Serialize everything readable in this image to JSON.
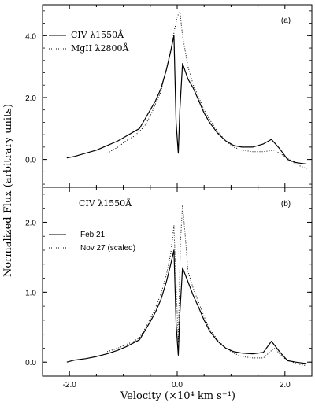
{
  "chart_data": [
    {
      "type": "line",
      "panel_label": "(a)",
      "xlim": [
        -2.5,
        2.5
      ],
      "ylim": [
        -0.9,
        5.0
      ],
      "yticks": [
        0.0,
        2.0,
        4.0
      ],
      "ytick_labels": [
        "0.0",
        "2.0",
        "4.0"
      ],
      "legend_placement": "top-left",
      "series": [
        {
          "name": "CIV λ1550Å",
          "style": "solid",
          "x": [
            -2.05,
            -1.9,
            -1.7,
            -1.5,
            -1.3,
            -1.1,
            -0.95,
            -0.8,
            -0.7,
            -0.6,
            -0.5,
            -0.4,
            -0.3,
            -0.2,
            -0.12,
            -0.06,
            -0.02,
            0.02,
            0.05,
            0.1,
            0.2,
            0.3,
            0.4,
            0.5,
            0.6,
            0.75,
            0.9,
            1.05,
            1.2,
            1.4,
            1.6,
            1.75,
            1.9,
            2.05,
            2.2,
            2.4
          ],
          "y": [
            0.05,
            0.1,
            0.2,
            0.3,
            0.45,
            0.6,
            0.75,
            0.9,
            1.0,
            1.3,
            1.6,
            1.9,
            2.3,
            2.9,
            3.5,
            4.0,
            1.2,
            0.2,
            1.6,
            3.1,
            2.6,
            2.3,
            1.9,
            1.5,
            1.2,
            0.85,
            0.6,
            0.45,
            0.4,
            0.4,
            0.5,
            0.65,
            0.35,
            0.0,
            -0.1,
            -0.15
          ]
        },
        {
          "name": "MgII λ2800Å",
          "style": "dotted",
          "x": [
            -1.3,
            -1.1,
            -0.95,
            -0.8,
            -0.7,
            -0.6,
            -0.5,
            -0.4,
            -0.3,
            -0.25,
            -0.2,
            -0.15,
            -0.1,
            -0.05,
            0.0,
            0.05,
            0.1,
            0.2,
            0.3,
            0.4,
            0.5,
            0.6,
            0.75,
            0.9,
            1.05,
            1.2,
            1.4,
            1.6,
            1.8,
            2.0,
            2.2,
            2.4
          ],
          "y": [
            0.2,
            0.4,
            0.6,
            0.75,
            0.9,
            1.1,
            1.4,
            1.8,
            2.2,
            2.6,
            2.9,
            3.3,
            3.7,
            4.2,
            4.6,
            4.8,
            4.0,
            3.0,
            2.4,
            2.0,
            1.6,
            1.3,
            0.9,
            0.6,
            0.4,
            0.3,
            0.25,
            0.25,
            0.3,
            0.1,
            -0.15,
            -0.3
          ]
        }
      ]
    },
    {
      "type": "line",
      "panel_label": "(b)",
      "title": "CIV λ1550Å",
      "xlim": [
        -2.5,
        2.5
      ],
      "ylim": [
        -0.2,
        2.5
      ],
      "yticks": [
        0.0,
        1.0,
        2.0
      ],
      "ytick_labels": [
        "0.0",
        "1.0",
        "2.0"
      ],
      "xticks": [
        -2.0,
        0.0,
        2.0
      ],
      "xtick_labels": [
        "-2.0",
        "0.0",
        "2.0"
      ],
      "legend_placement": "upper-left",
      "series": [
        {
          "name": "Feb 21",
          "style": "solid",
          "x": [
            -2.05,
            -1.9,
            -1.7,
            -1.5,
            -1.3,
            -1.1,
            -0.95,
            -0.8,
            -0.7,
            -0.6,
            -0.5,
            -0.4,
            -0.3,
            -0.2,
            -0.12,
            -0.06,
            -0.02,
            0.02,
            0.05,
            0.1,
            0.2,
            0.3,
            0.4,
            0.5,
            0.6,
            0.75,
            0.9,
            1.05,
            1.2,
            1.4,
            1.6,
            1.75,
            1.9,
            2.05,
            2.2,
            2.4
          ],
          "y": [
            0.0,
            0.03,
            0.05,
            0.08,
            0.12,
            0.17,
            0.22,
            0.28,
            0.32,
            0.45,
            0.58,
            0.72,
            0.9,
            1.15,
            1.4,
            1.6,
            0.55,
            0.1,
            0.7,
            1.35,
            1.15,
            0.95,
            0.78,
            0.6,
            0.45,
            0.3,
            0.2,
            0.15,
            0.13,
            0.12,
            0.14,
            0.3,
            0.15,
            0.02,
            0.0,
            -0.02
          ]
        },
        {
          "name": "Nov 27 (scaled)",
          "style": "dotted",
          "x": [
            -1.3,
            -1.1,
            -0.95,
            -0.8,
            -0.7,
            -0.6,
            -0.5,
            -0.4,
            -0.3,
            -0.2,
            -0.12,
            -0.06,
            -0.02,
            0.02,
            0.06,
            0.1,
            0.15,
            0.2,
            0.3,
            0.4,
            0.5,
            0.6,
            0.75,
            0.9,
            1.05,
            1.2,
            1.4,
            1.6,
            1.8,
            2.0,
            2.2,
            2.4
          ],
          "y": [
            0.15,
            0.2,
            0.25,
            0.3,
            0.35,
            0.48,
            0.62,
            0.78,
            0.98,
            1.25,
            1.55,
            1.95,
            1.1,
            0.3,
            1.7,
            2.25,
            1.8,
            1.3,
            1.05,
            0.85,
            0.65,
            0.48,
            0.32,
            0.2,
            0.13,
            0.08,
            0.06,
            0.06,
            0.2,
            0.05,
            -0.02,
            -0.05
          ]
        }
      ]
    }
  ],
  "shared_axes": {
    "ylabel": "Normalized Flux (arbitrary units)",
    "xlabel": "Velocity (×10⁴ km s⁻¹)"
  }
}
